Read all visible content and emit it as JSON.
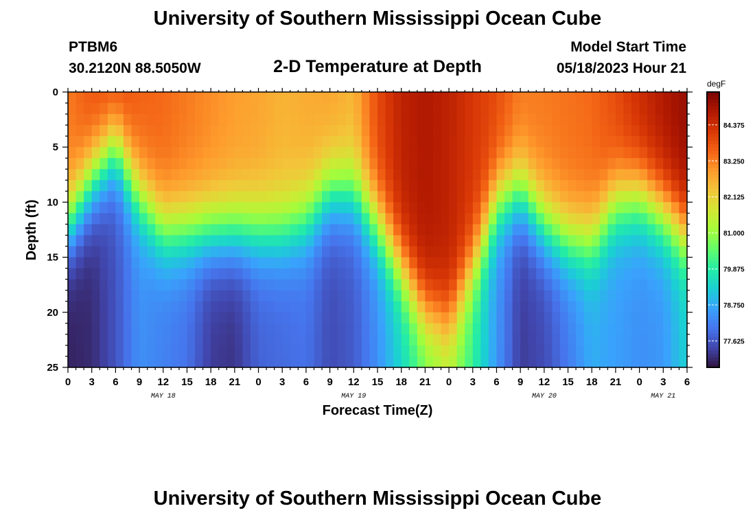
{
  "page": {
    "title": "University of Southern Mississippi Ocean Cube",
    "station": "PTBM6",
    "coords": "30.2120N  88.5050W",
    "plot_title": "2-D Temperature at Depth",
    "model_start_label": "Model Start Time",
    "model_start_value": "05/18/2023 Hour 21",
    "footer_title": "University of Southern Mississippi Ocean Cube"
  },
  "chart_data": {
    "type": "heatmap",
    "title": "2-D Temperature at Depth",
    "xlabel": "Forecast Time(Z)",
    "ylabel": "Depth (ft)",
    "x_ticks": [
      "0",
      "3",
      "6",
      "9",
      "12",
      "15",
      "18",
      "21",
      "0",
      "3",
      "6",
      "9",
      "12",
      "15",
      "18",
      "21",
      "0",
      "3",
      "6",
      "9",
      "12",
      "15",
      "18",
      "21",
      "0",
      "3",
      "6"
    ],
    "x_hours": [
      0,
      3,
      6,
      9,
      12,
      15,
      18,
      21,
      24,
      27,
      30,
      33,
      36,
      39,
      42,
      45,
      48,
      51,
      54,
      57,
      60,
      63,
      66,
      69,
      72,
      75,
      78
    ],
    "date_labels": [
      {
        "label": "MAY 18",
        "hour": 12
      },
      {
        "label": "MAY 19",
        "hour": 36
      },
      {
        "label": "MAY 20",
        "hour": 60
      },
      {
        "label": "MAY 21",
        "hour": 75
      }
    ],
    "y_ticks": [
      "0",
      "5",
      "10",
      "15",
      "20",
      "25"
    ],
    "y_values": [
      0,
      5,
      10,
      15,
      20,
      25
    ],
    "xlim": [
      0,
      78
    ],
    "ylim": [
      0,
      25
    ],
    "colorbar": {
      "unit": "degF",
      "ticks": [
        "84.375",
        "83.250",
        "82.125",
        "81.000",
        "79.875",
        "78.750",
        "77.625"
      ],
      "tick_values": [
        84.375,
        83.25,
        82.125,
        81.0,
        79.875,
        78.75,
        77.625
      ],
      "range": [
        76.8,
        85.4
      ],
      "colors": [
        "#30123b",
        "#4145ab",
        "#4675ed",
        "#39a2fc",
        "#1bcfd4",
        "#24eca6",
        "#61fc6c",
        "#a4fc3b",
        "#d1e834",
        "#f3c63a",
        "#fe9b2d",
        "#f36315",
        "#d93806",
        "#b11901",
        "#7a0403"
      ]
    },
    "grid": false,
    "legend": "right colorbar",
    "profiles": [
      {
        "hour": 0,
        "surface": 83.3,
        "bottom": 77.0,
        "mid": 12
      },
      {
        "hour": 3,
        "surface": 83.8,
        "bottom": 77.1,
        "mid": 8
      },
      {
        "hour": 6,
        "surface": 84.0,
        "bottom": 77.6,
        "mid": 5
      },
      {
        "hour": 9,
        "surface": 83.6,
        "bottom": 78.4,
        "mid": 9.5
      },
      {
        "hour": 12,
        "surface": 83.5,
        "bottom": 78.2,
        "mid": 12.5
      },
      {
        "hour": 15,
        "surface": 83.3,
        "bottom": 78.0,
        "mid": 12.5
      },
      {
        "hour": 18,
        "surface": 83.1,
        "bottom": 77.3,
        "mid": 12.5
      },
      {
        "hour": 21,
        "surface": 82.9,
        "bottom": 77.2,
        "mid": 12.5
      },
      {
        "hour": 24,
        "surface": 82.8,
        "bottom": 77.8,
        "mid": 12.5
      },
      {
        "hour": 27,
        "surface": 82.6,
        "bottom": 77.9,
        "mid": 12.5
      },
      {
        "hour": 30,
        "surface": 82.7,
        "bottom": 78.0,
        "mid": 11.5
      },
      {
        "hour": 33,
        "surface": 82.8,
        "bottom": 77.5,
        "mid": 9
      },
      {
        "hour": 36,
        "surface": 82.6,
        "bottom": 77.7,
        "mid": 9
      },
      {
        "hour": 39,
        "surface": 83.9,
        "bottom": 78.4,
        "mid": 12
      },
      {
        "hour": 42,
        "surface": 84.6,
        "bottom": 79.4,
        "mid": 16
      },
      {
        "hour": 45,
        "surface": 84.8,
        "bottom": 80.5,
        "mid": 20
      },
      {
        "hour": 48,
        "surface": 84.6,
        "bottom": 81.2,
        "mid": 21
      },
      {
        "hour": 51,
        "surface": 84.2,
        "bottom": 80.0,
        "mid": 16
      },
      {
        "hour": 54,
        "surface": 83.9,
        "bottom": 78.5,
        "mid": 10
      },
      {
        "hour": 57,
        "surface": 83.3,
        "bottom": 77.3,
        "mid": 9
      },
      {
        "hour": 60,
        "surface": 83.3,
        "bottom": 77.5,
        "mid": 12
      },
      {
        "hour": 63,
        "surface": 83.4,
        "bottom": 78.1,
        "mid": 13.5
      },
      {
        "hour": 66,
        "surface": 83.5,
        "bottom": 78.8,
        "mid": 13.5
      },
      {
        "hour": 69,
        "surface": 83.9,
        "bottom": 78.6,
        "mid": 10
      },
      {
        "hour": 72,
        "surface": 84.4,
        "bottom": 78.4,
        "mid": 9.5
      },
      {
        "hour": 75,
        "surface": 84.8,
        "bottom": 78.5,
        "mid": 11
      },
      {
        "hour": 78,
        "surface": 85.1,
        "bottom": 79.3,
        "mid": 13
      }
    ]
  }
}
